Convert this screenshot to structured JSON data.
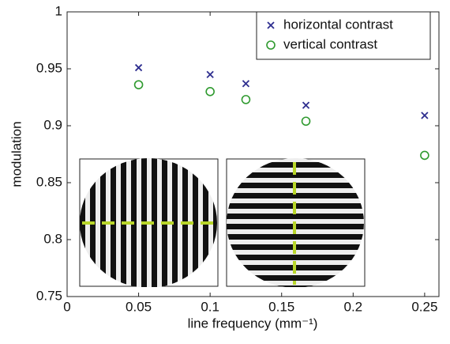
{
  "chart_data": {
    "type": "scatter",
    "xlabel": "line frequency (mm⁻¹)",
    "ylabel": "modulation",
    "xlim": [
      0,
      0.26
    ],
    "ylim": [
      0.75,
      1
    ],
    "xticks": [
      0,
      0.05,
      0.1,
      0.15,
      0.2,
      0.25
    ],
    "yticks": [
      0.75,
      0.8,
      0.85,
      0.9,
      0.95,
      1
    ],
    "legend": "top-right",
    "series": [
      {
        "name": "horizontal contrast",
        "color": "#2e2e8f",
        "marker": "x",
        "x": [
          0.05,
          0.1,
          0.125,
          0.167,
          0.25
        ],
        "values": [
          0.951,
          0.945,
          0.937,
          0.918,
          0.909
        ]
      },
      {
        "name": "vertical contrast",
        "color": "#2f9a2f",
        "marker": "o",
        "x": [
          0.05,
          0.1,
          0.125,
          0.167,
          0.25
        ],
        "values": [
          0.936,
          0.93,
          0.923,
          0.904,
          0.874
        ]
      }
    ]
  }
}
